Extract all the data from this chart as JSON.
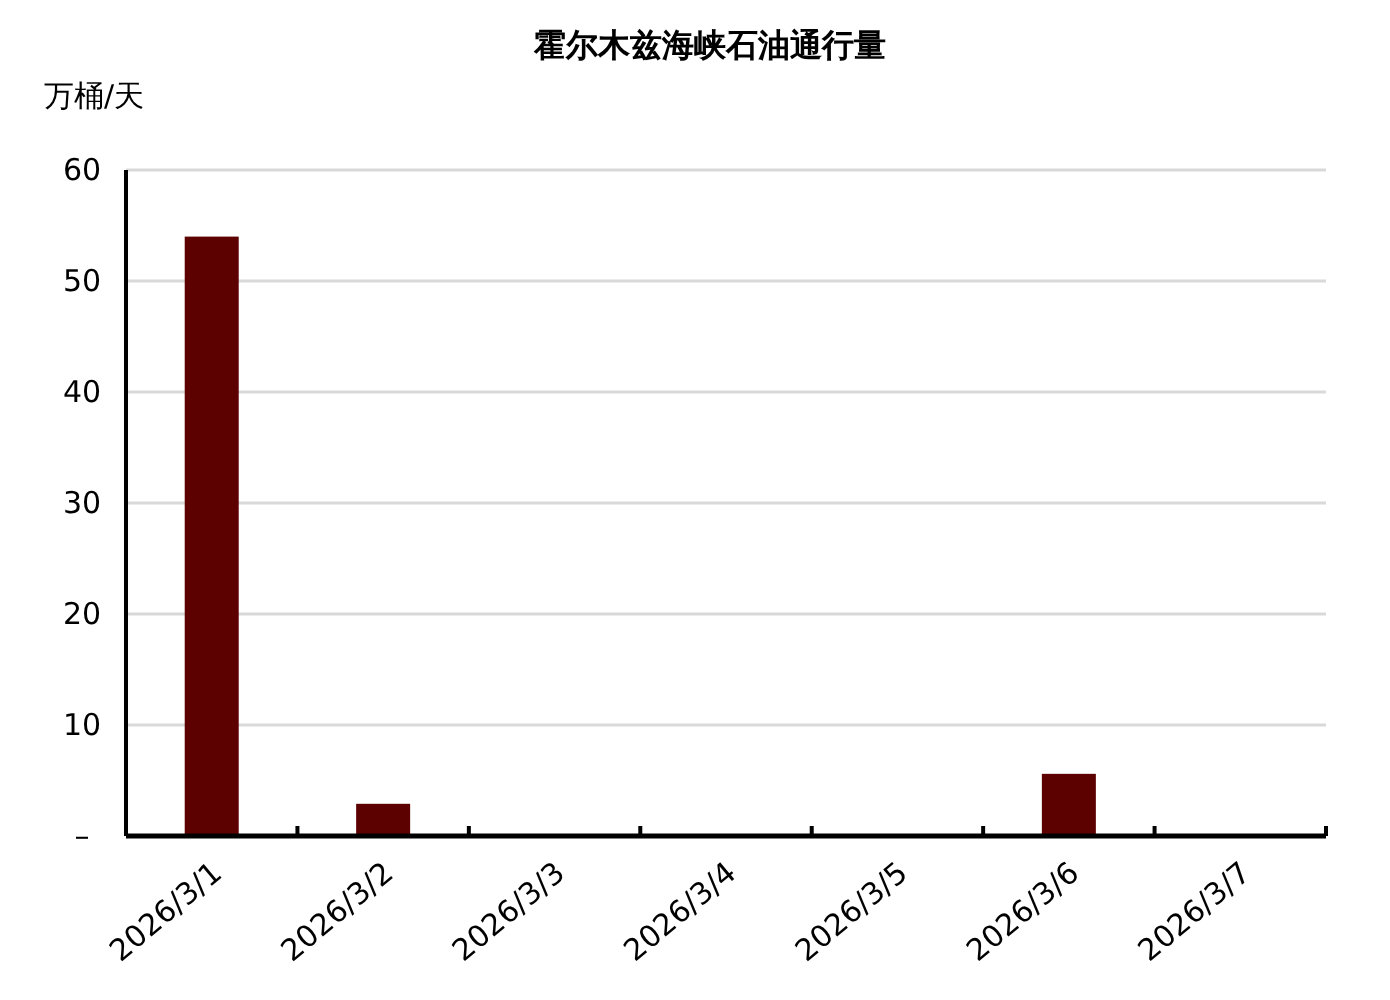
{
  "chart_data": {
    "type": "bar",
    "title": "霍尔木兹海峡石油通行量",
    "ylabel": "万桶/天",
    "categories": [
      "2026/3/1",
      "2026/3/2",
      "2026/3/3",
      "2026/3/4",
      "2026/3/5",
      "2026/3/6",
      "2026/3/7"
    ],
    "values": [
      54,
      2.9,
      0,
      0,
      0,
      5.6,
      0
    ],
    "color": "#5c0000",
    "ylim": [
      0,
      60
    ],
    "yticks": [
      {
        "value": 0,
        "label": "–"
      },
      10,
      20,
      30,
      40,
      50,
      60
    ],
    "grid": "y"
  }
}
